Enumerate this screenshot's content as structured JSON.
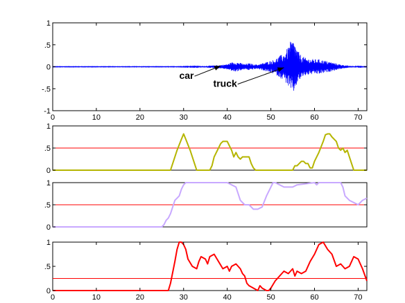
{
  "colors": {
    "background": "#ffffff",
    "axes": "#000000",
    "waveform": "#0000ff",
    "threshold": "#ff0000",
    "series_1": "#b5b500",
    "series_2": "#c8a8ff",
    "series_3": "#ff0000"
  },
  "chart_data": [
    {
      "type": "line",
      "xlim": [
        0,
        72
      ],
      "ylim": [
        -1,
        1
      ],
      "xticks": [
        0,
        10,
        20,
        30,
        40,
        50,
        60,
        70
      ],
      "yticks": [
        -1,
        -0.5,
        0,
        0.5,
        1
      ],
      "grid": false,
      "series": [
        {
          "color": "#0000ff",
          "kind": "waveform",
          "envelope": [
            [
              0,
              0.005
            ],
            [
              28,
              0.005
            ],
            [
              33,
              0.01
            ],
            [
              35,
              0.02
            ],
            [
              37,
              0.03
            ],
            [
              38.5,
              0.04
            ],
            [
              40,
              0.06
            ],
            [
              41,
              0.1
            ],
            [
              42,
              0.11
            ],
            [
              43,
              0.09
            ],
            [
              44,
              0.06
            ],
            [
              45,
              0.08
            ],
            [
              46,
              0.06
            ],
            [
              47,
              0.05
            ],
            [
              48,
              0.08
            ],
            [
              49,
              0.11
            ],
            [
              50,
              0.14
            ],
            [
              51,
              0.17
            ],
            [
              52,
              0.25
            ],
            [
              53,
              0.3
            ],
            [
              54,
              0.45
            ],
            [
              54.7,
              0.62
            ],
            [
              55.4,
              0.58
            ],
            [
              56,
              0.4
            ],
            [
              57,
              0.25
            ],
            [
              58,
              0.2
            ],
            [
              59,
              0.18
            ],
            [
              60,
              0.17
            ],
            [
              61,
              0.17
            ],
            [
              62,
              0.15
            ],
            [
              64,
              0.1
            ],
            [
              66,
              0.05
            ],
            [
              68,
              0.02
            ],
            [
              70,
              0.01
            ],
            [
              72,
              0.005
            ]
          ]
        }
      ],
      "annotations": [
        {
          "text": "car",
          "text_at": [
            29,
            -0.2
          ],
          "arrow_to": [
            38.5,
            0.02
          ]
        },
        {
          "text": "truck",
          "text_at": [
            36.8,
            -0.38
          ],
          "arrow_to": [
            53,
            -0.02
          ]
        }
      ]
    },
    {
      "type": "line",
      "xlim": [
        0,
        72
      ],
      "ylim": [
        0,
        1
      ],
      "yticks": [
        0,
        0.5,
        1
      ],
      "threshold": 0.5,
      "series": [
        {
          "color": "#b5b500",
          "x": [
            0,
            27,
            27.5,
            28.5,
            29.5,
            30,
            30.5,
            31.5,
            32.5,
            33,
            36,
            36.5,
            37,
            38,
            38.5,
            39,
            40,
            40.5,
            41,
            41.5,
            42,
            42.5,
            43,
            43.5,
            44,
            45,
            45.5,
            46,
            46.5,
            47,
            47.5,
            55,
            55.5,
            56,
            57,
            57.5,
            58,
            58.5,
            59,
            59.5,
            60,
            61,
            62,
            62.5,
            63,
            63.5,
            64,
            65,
            65.5,
            66,
            66.5,
            67,
            67.5,
            68,
            68.5,
            69,
            70,
            72
          ],
          "y": [
            0,
            0,
            0.15,
            0.45,
            0.7,
            0.82,
            0.7,
            0.45,
            0.15,
            0,
            0,
            0.1,
            0.3,
            0.5,
            0.6,
            0.65,
            0.65,
            0.55,
            0.45,
            0.3,
            0.4,
            0.3,
            0.25,
            0.3,
            0.3,
            0.3,
            0.15,
            0.05,
            0,
            0,
            0,
            0,
            0.1,
            0.1,
            0.2,
            0.2,
            0.15,
            0.15,
            0.05,
            0.05,
            0.2,
            0.4,
            0.65,
            0.8,
            0.82,
            0.82,
            0.75,
            0.65,
            0.5,
            0.45,
            0.5,
            0.4,
            0.45,
            0.3,
            0.15,
            0,
            0,
            0
          ]
        }
      ]
    },
    {
      "type": "line",
      "xlim": [
        0,
        72
      ],
      "ylim": [
        0,
        1
      ],
      "yticks": [
        0,
        0.5,
        1
      ],
      "threshold": 0.5,
      "series": [
        {
          "color": "#c8a8ff",
          "x": [
            0,
            25,
            25.5,
            26,
            26.5,
            27,
            27.5,
            28,
            28.5,
            29,
            29.5,
            30,
            30.5,
            31,
            40,
            41,
            42,
            42.5,
            43,
            44,
            45,
            45.5,
            46,
            47,
            48,
            49,
            50,
            50.5,
            51,
            52,
            53,
            55,
            56,
            60,
            60.5,
            61,
            66,
            66.5,
            67,
            68,
            69,
            70,
            71,
            72
          ],
          "y": [
            0,
            0,
            0.05,
            0.15,
            0.2,
            0.3,
            0.45,
            0.6,
            0.65,
            0.7,
            0.85,
            0.95,
            1,
            1,
            1,
            0.95,
            0.9,
            0.75,
            0.6,
            0.5,
            0.5,
            0.45,
            0.4,
            0.4,
            0.45,
            0.7,
            0.9,
            1,
            1,
            0.95,
            0.9,
            0.9,
            0.95,
            1,
            0.95,
            1,
            1,
            0.9,
            0.7,
            0.6,
            0.55,
            0.5,
            0.6,
            0.65
          ]
        }
      ]
    },
    {
      "type": "line",
      "xlim": [
        0,
        72
      ],
      "ylim": [
        0,
        1
      ],
      "xticks": [
        0,
        10,
        20,
        30,
        40,
        50,
        60,
        70
      ],
      "yticks": [
        0,
        0.5,
        1
      ],
      "threshold": 0.25,
      "series": [
        {
          "color": "#ff0000",
          "x": [
            0,
            26.5,
            27,
            28,
            28.5,
            29,
            29.5,
            30,
            30.5,
            31,
            32,
            33,
            33.5,
            34,
            35,
            35.5,
            36,
            37,
            38,
            39,
            40,
            40.5,
            41,
            42,
            43,
            43.5,
            44,
            44.5,
            45,
            46,
            47,
            47.5,
            48,
            49,
            49.5,
            50,
            51,
            52,
            53,
            54,
            55,
            55.5,
            56,
            57,
            58,
            59,
            60,
            61,
            62,
            63,
            64,
            65,
            66,
            67,
            68,
            69,
            70,
            71,
            72
          ],
          "y": [
            0,
            0,
            0.15,
            0.6,
            0.85,
            1,
            1,
            0.95,
            0.85,
            0.65,
            0.5,
            0.45,
            0.6,
            0.7,
            0.65,
            0.55,
            0.7,
            0.75,
            0.6,
            0.45,
            0.5,
            0.4,
            0.5,
            0.55,
            0.45,
            0.35,
            0.3,
            0.15,
            0.1,
            0.05,
            0,
            0.1,
            0.05,
            0,
            0,
            0.05,
            0.2,
            0.3,
            0.4,
            0.35,
            0.45,
            0.3,
            0.4,
            0.35,
            0.4,
            0.6,
            0.75,
            0.95,
            1,
            0.85,
            0.75,
            0.5,
            0.55,
            0.45,
            0.5,
            0.7,
            0.65,
            0.45,
            0.2
          ]
        }
      ]
    }
  ]
}
